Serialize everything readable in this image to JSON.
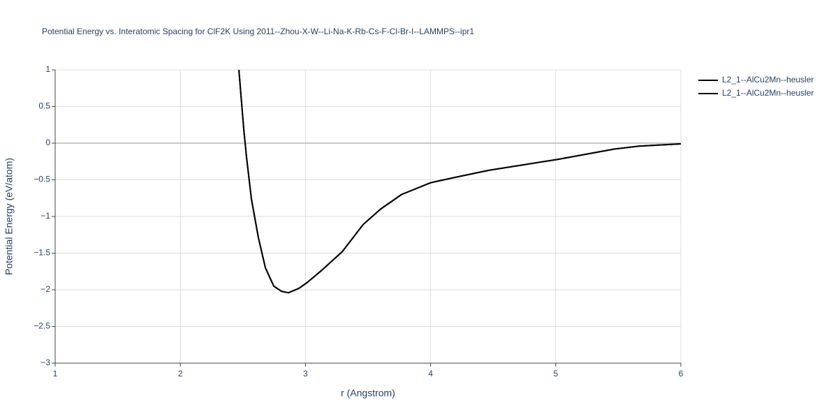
{
  "chart_data": {
    "type": "line",
    "title": "Potential Energy vs. Interatomic Spacing for ClF2K Using 2011--Zhou-X-W--Li-Na-K-Rb-Cs-F-Cl-Br-I--LAMMPS--ipr1",
    "x_label": "r (Angstrom)",
    "y_label": "Potential Energy (eV/atom)",
    "x": [
      2.468,
      2.507,
      2.529,
      2.568,
      2.624,
      2.68,
      2.747,
      2.808,
      2.864,
      2.948,
      3.014,
      3.126,
      3.294,
      3.461,
      3.6,
      3.768,
      4.0,
      4.186,
      4.465,
      5.02,
      5.47,
      5.665,
      6.0
    ],
    "series": [
      {
        "name": "L2_1--AlCu2Mn--heusler",
        "color": "#000000",
        "values": [
          1.0,
          0.19,
          -0.19,
          -0.76,
          -1.29,
          -1.7,
          -1.95,
          -2.02,
          -2.04,
          -1.98,
          -1.9,
          -1.74,
          -1.48,
          -1.11,
          -0.9,
          -0.7,
          -0.54,
          -0.47,
          -0.37,
          -0.22,
          -0.08,
          -0.04,
          -0.01
        ]
      },
      {
        "name": "L2_1--AlCu2Mn--heusler",
        "color": "#000000",
        "values": [
          1.0,
          0.19,
          -0.19,
          -0.76,
          -1.29,
          -1.7,
          -1.95,
          -2.02,
          -2.04,
          -1.98,
          -1.9,
          -1.74,
          -1.48,
          -1.11,
          -0.9,
          -0.7,
          -0.54,
          -0.47,
          -0.37,
          -0.22,
          -0.08,
          -0.04,
          -0.01
        ]
      }
    ],
    "xlim": [
      1,
      6
    ],
    "xticks": [
      1,
      2,
      3,
      4,
      5,
      6
    ],
    "ylim": [
      -3,
      1
    ],
    "yticks": [
      {
        "value": -3,
        "label": "−3"
      },
      {
        "value": -2.5,
        "label": "−2.5"
      },
      {
        "value": -2,
        "label": "−2"
      },
      {
        "value": -1.5,
        "label": "−1.5"
      },
      {
        "value": -1,
        "label": "−1"
      },
      {
        "value": -0.5,
        "label": "−0.5"
      },
      0,
      0.5,
      1
    ],
    "grid": true,
    "legend": "right"
  }
}
